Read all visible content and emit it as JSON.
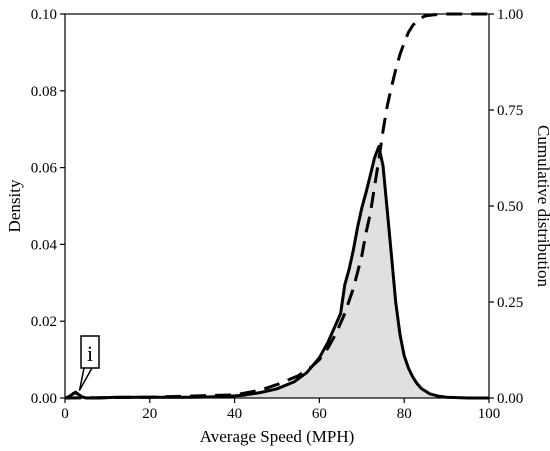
{
  "chart_data": {
    "type": "area",
    "xlabel": "Average Speed (MPH)",
    "ylabel": "Density",
    "y2label": "Cumulative distribution",
    "xlim": [
      0,
      100
    ],
    "ylim": [
      0,
      0.1
    ],
    "y2lim": [
      0,
      1
    ],
    "x_ticks": [
      "0",
      "20",
      "40",
      "60",
      "80",
      "100"
    ],
    "y_ticks": [
      "0.00",
      "0.02",
      "0.04",
      "0.06",
      "0.08",
      "0.10"
    ],
    "y2_ticks": [
      "0.00",
      "0.25",
      "0.50",
      "0.75",
      "1.00"
    ],
    "colors": {
      "fill": "#e0e0e0",
      "line": "#000000"
    },
    "annotation": {
      "text": "i",
      "x": 2.5,
      "y": 0.001
    },
    "series": [
      {
        "style": "solid",
        "axis": "left",
        "x": [
          0,
          1,
          2,
          2.5,
          3,
          4,
          5,
          8,
          12,
          20,
          30,
          38,
          42,
          46,
          50,
          54,
          57,
          60,
          62,
          64,
          65,
          66,
          67,
          68,
          69,
          70,
          71,
          72,
          73,
          74,
          75,
          76,
          77,
          78,
          79,
          80,
          81,
          82,
          83,
          84,
          86,
          88,
          90,
          95,
          100
        ],
        "y": [
          0,
          0.0004,
          0.0012,
          0.0015,
          0.0011,
          0.0003,
          0,
          0,
          0.0002,
          0.0002,
          0.0002,
          0.0004,
          0.0007,
          0.0014,
          0.0024,
          0.0042,
          0.0066,
          0.0105,
          0.0145,
          0.0195,
          0.022,
          0.0295,
          0.0335,
          0.0385,
          0.0445,
          0.0495,
          0.0535,
          0.058,
          0.0625,
          0.0655,
          0.0605,
          0.049,
          0.037,
          0.025,
          0.0165,
          0.011,
          0.0078,
          0.0055,
          0.0038,
          0.0025,
          0.0011,
          0.0005,
          0.0002,
          0,
          0
        ]
      },
      {
        "style": "dashed",
        "axis": "right",
        "x": [
          0,
          20,
          40,
          46,
          50,
          55,
          58,
          60,
          62,
          64,
          66,
          68,
          70,
          71,
          72,
          73,
          74,
          75,
          76,
          77,
          78,
          79,
          80,
          81,
          82,
          83,
          84,
          85,
          87,
          90,
          95,
          100
        ],
        "y": [
          0,
          0.002,
          0.008,
          0.02,
          0.035,
          0.058,
          0.08,
          0.1,
          0.13,
          0.17,
          0.22,
          0.285,
          0.37,
          0.43,
          0.48,
          0.55,
          0.62,
          0.695,
          0.76,
          0.81,
          0.855,
          0.895,
          0.925,
          0.952,
          0.97,
          0.982,
          0.99,
          0.995,
          0.998,
          1.0,
          1.0,
          1.0
        ]
      }
    ]
  }
}
